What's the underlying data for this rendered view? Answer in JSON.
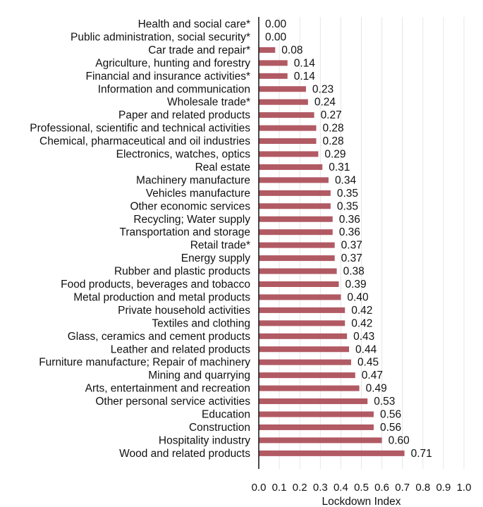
{
  "chart_data": {
    "type": "bar",
    "orientation": "horizontal",
    "categories": [
      "Health and social care*",
      "Public administration, social security*",
      "Car trade and repair*",
      "Agriculture, hunting and forestry",
      "Financial and insurance activities*",
      "Information and communication",
      "Wholesale trade*",
      "Paper and related products",
      "Professional, scientific and technical activities",
      "Chemical, pharmaceutical and oil industries",
      "Electronics, watches, optics",
      "Real estate",
      "Machinery manufacture",
      "Vehicles manufacture",
      "Other economic services",
      "Recycling; Water supply",
      "Transportation and storage",
      "Retail trade*",
      "Energy supply",
      "Rubber and plastic products",
      "Food products, beverages and tobacco",
      "Metal production and metal products",
      "Private household activities",
      "Textiles and clothing",
      "Glass, ceramics and cement products",
      "Leather and related products",
      "Furniture manufacture; Repair of machinery",
      "Mining and quarrying",
      "Arts, entertainment and recreation",
      "Other personal service activities",
      "Education",
      "Construction",
      "Hospitality industry",
      "Wood and related products"
    ],
    "values": [
      0.0,
      0.0,
      0.08,
      0.14,
      0.14,
      0.23,
      0.24,
      0.27,
      0.28,
      0.28,
      0.29,
      0.31,
      0.34,
      0.35,
      0.35,
      0.36,
      0.36,
      0.37,
      0.37,
      0.38,
      0.39,
      0.4,
      0.42,
      0.42,
      0.43,
      0.44,
      0.45,
      0.47,
      0.49,
      0.53,
      0.56,
      0.56,
      0.6,
      0.71
    ],
    "value_labels": [
      "0.00",
      "0.00",
      "0.08",
      "0.14",
      "0.14",
      "0.23",
      "0.24",
      "0.27",
      "0.28",
      "0.28",
      "0.29",
      "0.31",
      "0.34",
      "0.35",
      "0.35",
      "0.36",
      "0.36",
      "0.37",
      "0.37",
      "0.38",
      "0.39",
      "0.40",
      "0.42",
      "0.42",
      "0.43",
      "0.44",
      "0.45",
      "0.47",
      "0.49",
      "0.53",
      "0.56",
      "0.56",
      "0.60",
      "0.71"
    ],
    "xlabel": "Lockdown Index",
    "ylabel": "",
    "title": "",
    "xlim": [
      0.0,
      1.0
    ],
    "xticks": [
      "0.0",
      "0.1",
      "0.2",
      "0.3",
      "0.4",
      "0.5",
      "0.6",
      "0.7",
      "0.8",
      "0.9",
      "1.0"
    ],
    "grid": "vertical",
    "bar_color": "#b15a63",
    "grid_color": "#e6e6e6"
  }
}
